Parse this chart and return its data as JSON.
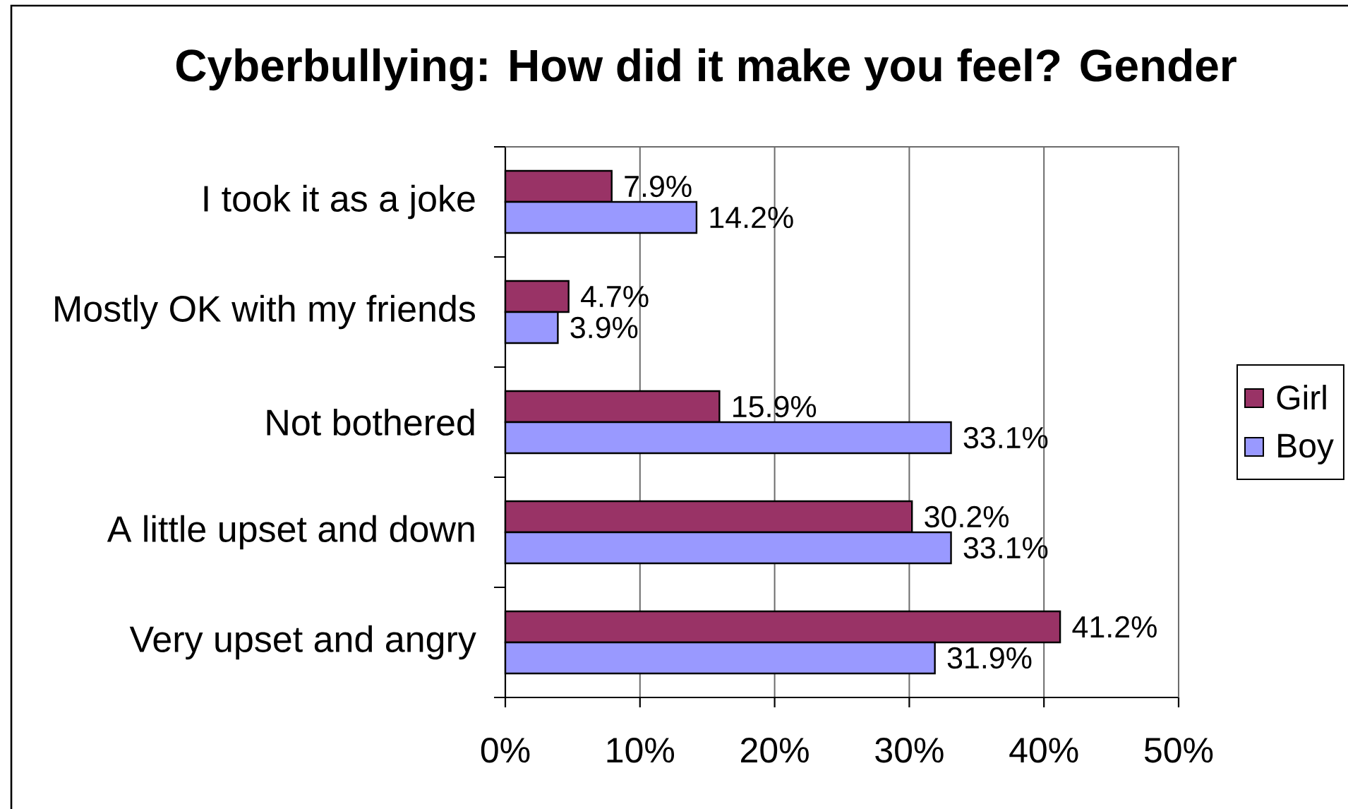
{
  "chart_data": {
    "type": "bar",
    "orientation": "horizontal",
    "title": "Cyberbullying: How did it make you feel? Gender",
    "categories": [
      "I took it as a joke",
      "Mostly OK with my friends",
      "Not  bothered",
      "A little upset and down",
      "Very upset and angry"
    ],
    "series": [
      {
        "name": "Girl",
        "color": "#993366",
        "values": [
          7.9,
          4.7,
          15.9,
          30.2,
          41.2
        ],
        "value_labels": [
          "7.9%",
          "4.7%",
          "15.9%",
          "30.2%",
          "41.2%"
        ]
      },
      {
        "name": "Boy",
        "color": "#9999ff",
        "values": [
          14.2,
          3.9,
          33.1,
          33.1,
          31.9
        ],
        "value_labels": [
          "14.2%",
          "3.9%",
          "33.1%",
          "33.1%",
          "31.9%"
        ]
      }
    ],
    "xlim": [
      0,
      50
    ],
    "xticks": [
      {
        "value": 0,
        "label": "0%"
      },
      {
        "value": 10,
        "label": "10%"
      },
      {
        "value": 20,
        "label": "20%"
      },
      {
        "value": 30,
        "label": "30%"
      },
      {
        "value": 40,
        "label": "40%"
      },
      {
        "value": 50,
        "label": "50%"
      }
    ],
    "grid": "x",
    "legend": "right"
  }
}
